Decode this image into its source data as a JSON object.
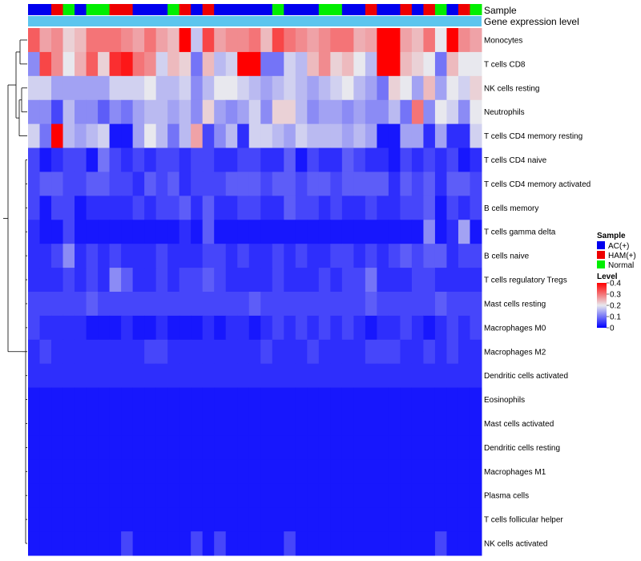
{
  "chart_data": {
    "type": "heatmap",
    "title": "",
    "column_annotations": {
      "Sample": [
        "AC(+)",
        "AC(+)",
        "HAM(+)",
        "Normal",
        "AC(+)",
        "Normal",
        "Normal",
        "HAM(+)",
        "HAM(+)",
        "AC(+)",
        "AC(+)",
        "AC(+)",
        "Normal",
        "HAM(+)",
        "AC(+)",
        "HAM(+)",
        "AC(+)",
        "AC(+)",
        "AC(+)",
        "AC(+)",
        "AC(+)",
        "Normal",
        "AC(+)",
        "AC(+)",
        "AC(+)",
        "Normal",
        "Normal",
        "AC(+)",
        "AC(+)",
        "HAM(+)",
        "AC(+)",
        "AC(+)",
        "HAM(+)",
        "AC(+)",
        "HAM(+)",
        "Normal",
        "AC(+)",
        "HAM(+)",
        "Normal"
      ],
      "annotation_labels": [
        "Sample",
        "Gene expression level"
      ]
    },
    "rows": [
      "Monocytes",
      "T cells CD8",
      "NK cells resting",
      "Neutrophils",
      "T cells CD4 memory resting",
      "T cells CD4 naive",
      "T cells CD4 memory activated",
      "B cells memory",
      "T cells gamma delta",
      "B cells naive",
      "T cells regulatory  Tregs",
      "Mast cells resting",
      "Macrophages M0",
      "Macrophages M2",
      "Dendritic cells activated",
      "Eosinophils",
      "Mast cells activated",
      "Dendritic cells resting",
      "Macrophages M1",
      "Plasma cells",
      "T cells follicular helper",
      "NK cells activated"
    ],
    "values": [
      [
        0.32,
        0.26,
        0.28,
        0.22,
        0.24,
        0.3,
        0.3,
        0.3,
        0.28,
        0.26,
        0.3,
        0.26,
        0.24,
        0.4,
        0.17,
        0.34,
        0.26,
        0.28,
        0.28,
        0.3,
        0.24,
        0.34,
        0.3,
        0.28,
        0.26,
        0.28,
        0.3,
        0.3,
        0.25,
        0.26,
        0.4,
        0.4,
        0.26,
        0.24,
        0.3,
        0.2,
        0.4,
        0.28,
        0.26
      ],
      [
        0.12,
        0.34,
        0.28,
        0.2,
        0.25,
        0.32,
        0.22,
        0.36,
        0.38,
        0.3,
        0.28,
        0.18,
        0.24,
        0.22,
        0.1,
        0.24,
        0.16,
        0.18,
        0.4,
        0.4,
        0.1,
        0.1,
        0.18,
        0.16,
        0.24,
        0.28,
        0.22,
        0.24,
        0.2,
        0.16,
        0.4,
        0.4,
        0.24,
        0.22,
        0.2,
        0.1,
        0.24,
        0.2,
        0.2
      ],
      [
        0.18,
        0.18,
        0.14,
        0.14,
        0.14,
        0.14,
        0.14,
        0.18,
        0.18,
        0.18,
        0.2,
        0.16,
        0.16,
        0.18,
        0.12,
        0.16,
        0.2,
        0.2,
        0.18,
        0.16,
        0.14,
        0.16,
        0.18,
        0.16,
        0.14,
        0.16,
        0.18,
        0.2,
        0.16,
        0.14,
        0.1,
        0.22,
        0.2,
        0.14,
        0.24,
        0.14,
        0.2,
        0.18,
        0.22
      ],
      [
        0.12,
        0.12,
        0.06,
        0.16,
        0.12,
        0.12,
        0.08,
        0.12,
        0.1,
        0.14,
        0.16,
        0.16,
        0.14,
        0.16,
        0.12,
        0.22,
        0.14,
        0.12,
        0.14,
        0.18,
        0.12,
        0.22,
        0.22,
        0.16,
        0.12,
        0.14,
        0.14,
        0.12,
        0.14,
        0.12,
        0.12,
        0.16,
        0.1,
        0.3,
        0.12,
        0.2,
        0.18,
        0.12,
        0.2
      ],
      [
        0.18,
        0.1,
        0.4,
        0.16,
        0.14,
        0.16,
        0.18,
        0.02,
        0.02,
        0.14,
        0.2,
        0.16,
        0.1,
        0.16,
        0.26,
        0.06,
        0.12,
        0.16,
        0.04,
        0.18,
        0.18,
        0.16,
        0.14,
        0.18,
        0.16,
        0.16,
        0.16,
        0.14,
        0.16,
        0.14,
        0.02,
        0.02,
        0.14,
        0.14,
        0.04,
        0.14,
        0.04,
        0.04,
        0.18
      ],
      [
        0.06,
        0.02,
        0.04,
        0.06,
        0.06,
        0.02,
        0.1,
        0.06,
        0.04,
        0.06,
        0.04,
        0.06,
        0.06,
        0.04,
        0.06,
        0.06,
        0.04,
        0.04,
        0.06,
        0.06,
        0.04,
        0.04,
        0.08,
        0.02,
        0.06,
        0.04,
        0.04,
        0.08,
        0.06,
        0.04,
        0.04,
        0.02,
        0.06,
        0.04,
        0.06,
        0.04,
        0.06,
        0.02,
        0.04
      ],
      [
        0.06,
        0.08,
        0.08,
        0.06,
        0.06,
        0.08,
        0.08,
        0.06,
        0.06,
        0.04,
        0.08,
        0.06,
        0.08,
        0.04,
        0.06,
        0.06,
        0.06,
        0.08,
        0.08,
        0.08,
        0.06,
        0.08,
        0.08,
        0.06,
        0.08,
        0.08,
        0.06,
        0.08,
        0.08,
        0.08,
        0.08,
        0.04,
        0.08,
        0.06,
        0.08,
        0.04,
        0.08,
        0.08,
        0.06
      ],
      [
        0.06,
        0.02,
        0.06,
        0.06,
        0.02,
        0.04,
        0.04,
        0.04,
        0.04,
        0.06,
        0.04,
        0.06,
        0.06,
        0.08,
        0.04,
        0.08,
        0.04,
        0.04,
        0.06,
        0.06,
        0.04,
        0.04,
        0.08,
        0.06,
        0.06,
        0.04,
        0.06,
        0.04,
        0.04,
        0.06,
        0.04,
        0.04,
        0.06,
        0.06,
        0.08,
        0.02,
        0.06,
        0.04,
        0.06
      ],
      [
        0.04,
        0.02,
        0.02,
        0.06,
        0.02,
        0.02,
        0.02,
        0.02,
        0.02,
        0.02,
        0.02,
        0.02,
        0.02,
        0.04,
        0.02,
        0.08,
        0.02,
        0.02,
        0.02,
        0.02,
        0.02,
        0.02,
        0.02,
        0.02,
        0.02,
        0.02,
        0.02,
        0.02,
        0.02,
        0.02,
        0.02,
        0.02,
        0.02,
        0.02,
        0.12,
        0.02,
        0.04,
        0.14,
        0.02
      ],
      [
        0.04,
        0.04,
        0.06,
        0.12,
        0.04,
        0.06,
        0.04,
        0.06,
        0.04,
        0.04,
        0.04,
        0.06,
        0.04,
        0.04,
        0.04,
        0.06,
        0.06,
        0.04,
        0.06,
        0.04,
        0.04,
        0.06,
        0.04,
        0.06,
        0.04,
        0.04,
        0.06,
        0.06,
        0.04,
        0.06,
        0.04,
        0.06,
        0.08,
        0.06,
        0.08,
        0.08,
        0.04,
        0.06,
        0.06
      ],
      [
        0.04,
        0.04,
        0.04,
        0.06,
        0.04,
        0.06,
        0.04,
        0.12,
        0.08,
        0.04,
        0.04,
        0.06,
        0.04,
        0.06,
        0.06,
        0.08,
        0.06,
        0.04,
        0.04,
        0.04,
        0.04,
        0.06,
        0.04,
        0.04,
        0.04,
        0.06,
        0.04,
        0.06,
        0.06,
        0.1,
        0.04,
        0.04,
        0.04,
        0.06,
        0.06,
        0.04,
        0.04,
        0.04,
        0.04
      ],
      [
        0.06,
        0.06,
        0.06,
        0.06,
        0.06,
        0.08,
        0.06,
        0.06,
        0.06,
        0.06,
        0.06,
        0.06,
        0.06,
        0.06,
        0.06,
        0.06,
        0.06,
        0.06,
        0.06,
        0.08,
        0.06,
        0.06,
        0.06,
        0.06,
        0.06,
        0.06,
        0.06,
        0.06,
        0.06,
        0.08,
        0.06,
        0.06,
        0.06,
        0.06,
        0.06,
        0.08,
        0.06,
        0.06,
        0.06
      ],
      [
        0.06,
        0.04,
        0.04,
        0.04,
        0.04,
        0.02,
        0.02,
        0.02,
        0.04,
        0.02,
        0.02,
        0.04,
        0.02,
        0.02,
        0.02,
        0.04,
        0.02,
        0.04,
        0.04,
        0.02,
        0.04,
        0.06,
        0.04,
        0.06,
        0.04,
        0.06,
        0.04,
        0.06,
        0.04,
        0.02,
        0.04,
        0.04,
        0.06,
        0.04,
        0.02,
        0.04,
        0.06,
        0.04,
        0.06
      ],
      [
        0.04,
        0.06,
        0.04,
        0.04,
        0.04,
        0.04,
        0.04,
        0.04,
        0.04,
        0.04,
        0.06,
        0.06,
        0.04,
        0.04,
        0.04,
        0.04,
        0.04,
        0.04,
        0.04,
        0.04,
        0.06,
        0.04,
        0.04,
        0.04,
        0.06,
        0.04,
        0.04,
        0.04,
        0.04,
        0.06,
        0.06,
        0.06,
        0.04,
        0.04,
        0.06,
        0.04,
        0.06,
        0.04,
        0.04
      ],
      [
        0.04,
        0.04,
        0.04,
        0.04,
        0.04,
        0.04,
        0.04,
        0.04,
        0.04,
        0.04,
        0.04,
        0.04,
        0.04,
        0.04,
        0.04,
        0.04,
        0.04,
        0.04,
        0.04,
        0.04,
        0.04,
        0.04,
        0.04,
        0.04,
        0.04,
        0.04,
        0.04,
        0.04,
        0.04,
        0.04,
        0.04,
        0.04,
        0.04,
        0.04,
        0.04,
        0.04,
        0.04,
        0.04,
        0.04
      ],
      [
        0.02,
        0.02,
        0.02,
        0.02,
        0.02,
        0.02,
        0.02,
        0.02,
        0.02,
        0.02,
        0.02,
        0.02,
        0.02,
        0.02,
        0.02,
        0.02,
        0.02,
        0.02,
        0.02,
        0.02,
        0.02,
        0.02,
        0.02,
        0.02,
        0.02,
        0.02,
        0.02,
        0.02,
        0.02,
        0.02,
        0.02,
        0.02,
        0.02,
        0.02,
        0.02,
        0.02,
        0.02,
        0.02,
        0.02
      ],
      [
        0.02,
        0.02,
        0.02,
        0.02,
        0.02,
        0.02,
        0.02,
        0.02,
        0.02,
        0.02,
        0.02,
        0.02,
        0.02,
        0.02,
        0.02,
        0.02,
        0.02,
        0.02,
        0.02,
        0.02,
        0.02,
        0.02,
        0.02,
        0.02,
        0.02,
        0.02,
        0.02,
        0.02,
        0.02,
        0.02,
        0.02,
        0.02,
        0.02,
        0.02,
        0.02,
        0.02,
        0.02,
        0.02,
        0.02
      ],
      [
        0.02,
        0.02,
        0.02,
        0.02,
        0.02,
        0.02,
        0.02,
        0.02,
        0.02,
        0.02,
        0.02,
        0.02,
        0.02,
        0.02,
        0.02,
        0.02,
        0.02,
        0.02,
        0.02,
        0.02,
        0.02,
        0.02,
        0.02,
        0.02,
        0.02,
        0.02,
        0.02,
        0.02,
        0.02,
        0.02,
        0.02,
        0.02,
        0.02,
        0.02,
        0.02,
        0.02,
        0.02,
        0.02,
        0.02
      ],
      [
        0.02,
        0.02,
        0.02,
        0.02,
        0.02,
        0.02,
        0.02,
        0.02,
        0.02,
        0.02,
        0.02,
        0.02,
        0.02,
        0.02,
        0.02,
        0.02,
        0.02,
        0.02,
        0.02,
        0.02,
        0.02,
        0.02,
        0.02,
        0.02,
        0.02,
        0.02,
        0.02,
        0.02,
        0.02,
        0.02,
        0.02,
        0.02,
        0.02,
        0.02,
        0.02,
        0.02,
        0.02,
        0.02,
        0.02
      ],
      [
        0.02,
        0.02,
        0.02,
        0.02,
        0.02,
        0.02,
        0.02,
        0.02,
        0.02,
        0.02,
        0.02,
        0.02,
        0.02,
        0.02,
        0.02,
        0.02,
        0.02,
        0.02,
        0.02,
        0.02,
        0.02,
        0.02,
        0.02,
        0.02,
        0.02,
        0.02,
        0.02,
        0.02,
        0.02,
        0.02,
        0.02,
        0.02,
        0.02,
        0.02,
        0.02,
        0.02,
        0.02,
        0.02,
        0.02
      ],
      [
        0.02,
        0.02,
        0.02,
        0.02,
        0.02,
        0.02,
        0.02,
        0.02,
        0.02,
        0.02,
        0.02,
        0.02,
        0.02,
        0.02,
        0.02,
        0.02,
        0.02,
        0.02,
        0.02,
        0.02,
        0.02,
        0.02,
        0.02,
        0.02,
        0.02,
        0.02,
        0.02,
        0.02,
        0.02,
        0.02,
        0.02,
        0.02,
        0.02,
        0.02,
        0.02,
        0.02,
        0.02,
        0.02,
        0.02
      ],
      [
        0.02,
        0.02,
        0.02,
        0.02,
        0.02,
        0.02,
        0.02,
        0.02,
        0.06,
        0.02,
        0.02,
        0.02,
        0.02,
        0.02,
        0.06,
        0.02,
        0.06,
        0.02,
        0.02,
        0.02,
        0.02,
        0.02,
        0.06,
        0.02,
        0.02,
        0.02,
        0.02,
        0.02,
        0.02,
        0.02,
        0.02,
        0.02,
        0.02,
        0.02,
        0.02,
        0.06,
        0.02,
        0.02,
        0.02
      ]
    ],
    "color_scale": {
      "min": 0,
      "max": 0.4,
      "low": "#0000ff",
      "mid": "#e8e8ee",
      "high": "#ff0000",
      "mid_value": 0.2
    },
    "annotation_colors": {
      "AC(+)": "#0000ee",
      "HAM(+)": "#ee0000",
      "Normal": "#00ee00",
      "gene_expression_bar": "#5cc5ee"
    },
    "legends": {
      "sample": {
        "title": "Sample",
        "entries": [
          "AC(+)",
          "HAM(+)",
          "Normal"
        ]
      },
      "level": {
        "title": "Level",
        "ticks": [
          "0.4",
          "0.3",
          "0.2",
          "0.1",
          "0"
        ],
        "tick_values": [
          0.4,
          0.3,
          0.2,
          0.1,
          0
        ]
      }
    },
    "dendrogram": "hierarchical clustering of rows (left side)"
  }
}
